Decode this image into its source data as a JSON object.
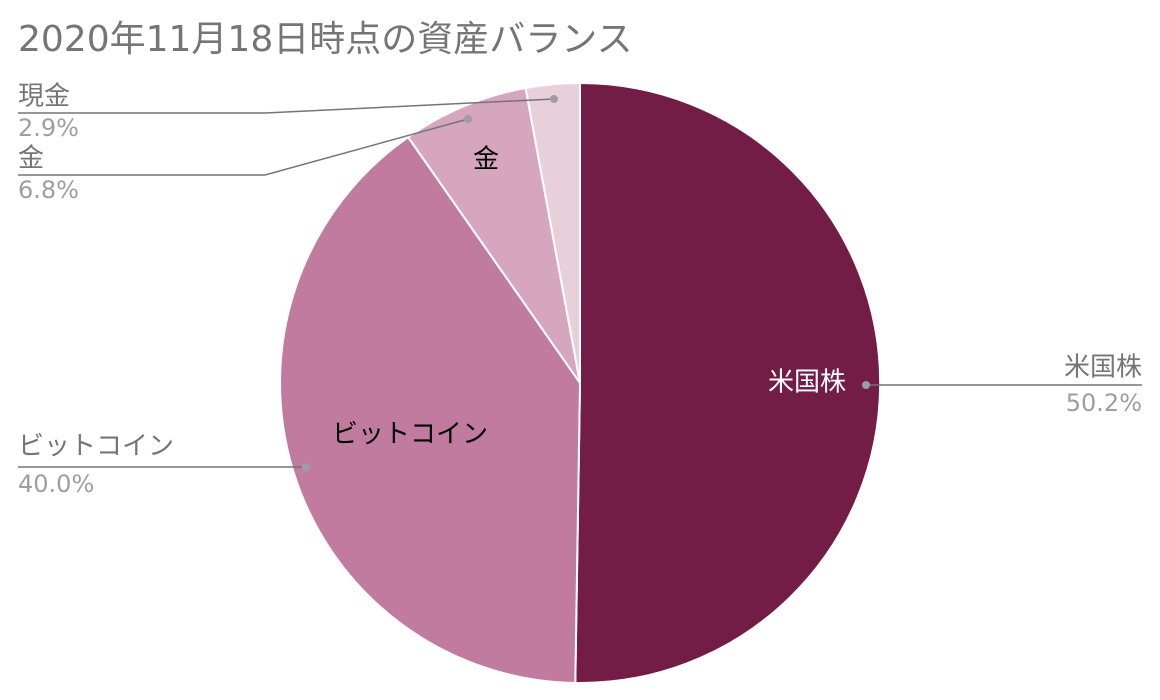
{
  "chart_data": {
    "type": "pie",
    "title": "2020年11月18日時点の資産バランス",
    "slices": [
      {
        "label": "米国株",
        "value": 50.2,
        "percent_label": "50.2%",
        "color": "#731c46",
        "inner_label_color": "#ffffff"
      },
      {
        "label": "ビットコイン",
        "value": 40.0,
        "percent_label": "40.0%",
        "color": "#c17b9e",
        "inner_label_color": "#000000"
      },
      {
        "label": "金",
        "value": 6.8,
        "percent_label": "6.8%",
        "color": "#d5a6bd",
        "inner_label_color": "#000000"
      },
      {
        "label": "現金",
        "value": 2.9,
        "percent_label": "2.9%",
        "color": "#e8d0db",
        "inner_label_color": null
      }
    ],
    "start_angle": "12 o'clock",
    "direction": "clockwise",
    "legend": "outside labels with leader lines"
  },
  "colors": {
    "title": "#757575",
    "outer_label": "#757575",
    "outer_percent": "#9e9e9e",
    "leader_line": "#757575"
  }
}
